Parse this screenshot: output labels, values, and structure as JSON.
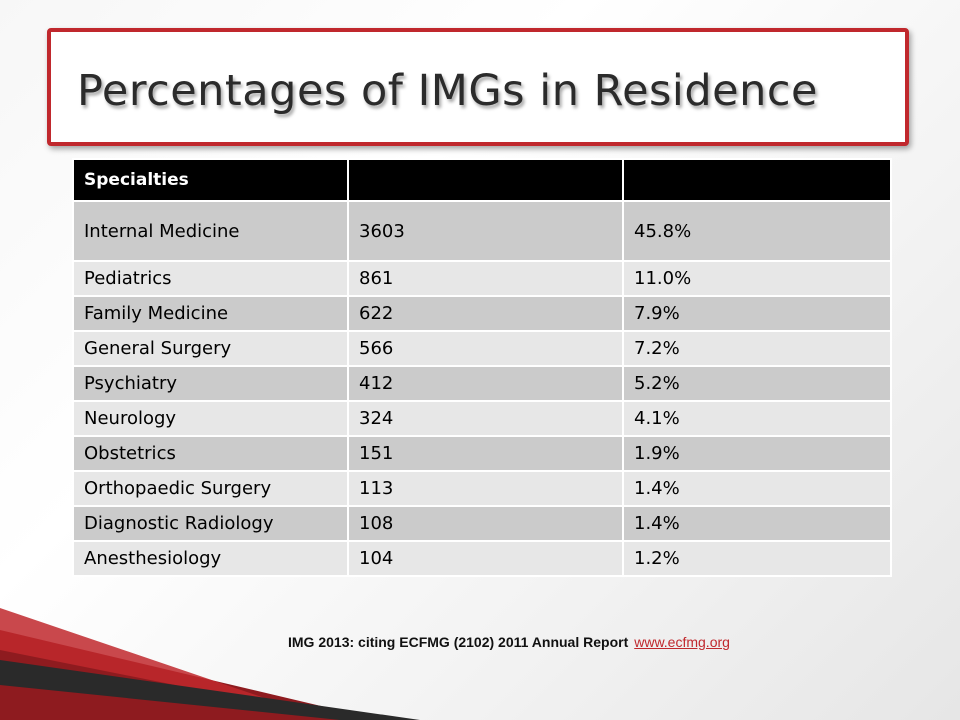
{
  "slide": {
    "title": "Percentages of IMGs in Residence",
    "accent_color": "#c0282d"
  },
  "table": {
    "headers": [
      "Specialties",
      "",
      ""
    ],
    "rows": [
      {
        "specialty": "Internal Medicine",
        "count": "3603",
        "percent": "45.8%"
      },
      {
        "specialty": "Pediatrics",
        "count": "861",
        "percent": "11.0%"
      },
      {
        "specialty": "Family Medicine",
        "count": "622",
        "percent": "7.9%"
      },
      {
        "specialty": "General Surgery",
        "count": "566",
        "percent": "7.2%"
      },
      {
        "specialty": "Psychiatry",
        "count": "412",
        "percent": "5.2%"
      },
      {
        "specialty": "Neurology",
        "count": "324",
        "percent": "4.1%"
      },
      {
        "specialty": "Obstetrics",
        "count": "151",
        "percent": "1.9%"
      },
      {
        "specialty": "Orthopaedic Surgery",
        "count": "113",
        "percent": "1.4%"
      },
      {
        "specialty": "Diagnostic Radiology",
        "count": "108",
        "percent": "1.4%"
      },
      {
        "specialty": "Anesthesiology",
        "count": "104",
        "percent": "1.2%"
      }
    ]
  },
  "citation": {
    "text": "IMG 2013: citing ECFMG (2102) 2011 Annual Report",
    "link": "www.ecfmg.org"
  }
}
